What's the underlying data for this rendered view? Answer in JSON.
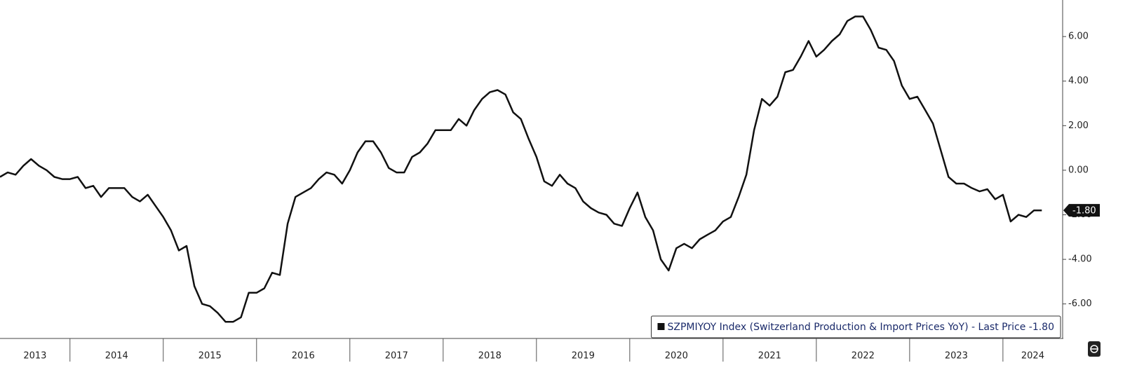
{
  "chart_data": {
    "type": "line",
    "x": [
      2013.25,
      2013.333,
      2013.417,
      2013.5,
      2013.583,
      2013.667,
      2013.75,
      2013.833,
      2013.917,
      2014,
      2014.083,
      2014.167,
      2014.25,
      2014.333,
      2014.417,
      2014.5,
      2014.583,
      2014.667,
      2014.75,
      2014.833,
      2014.917,
      2015,
      2015.083,
      2015.167,
      2015.25,
      2015.333,
      2015.417,
      2015.5,
      2015.583,
      2015.667,
      2015.75,
      2015.833,
      2015.917,
      2016,
      2016.083,
      2016.167,
      2016.25,
      2016.333,
      2016.417,
      2016.5,
      2016.583,
      2016.667,
      2016.75,
      2016.833,
      2016.917,
      2017,
      2017.083,
      2017.167,
      2017.25,
      2017.333,
      2017.417,
      2017.5,
      2017.583,
      2017.667,
      2017.75,
      2017.833,
      2017.917,
      2018,
      2018.083,
      2018.167,
      2018.25,
      2018.333,
      2018.417,
      2018.5,
      2018.583,
      2018.667,
      2018.75,
      2018.833,
      2018.917,
      2019,
      2019.083,
      2019.167,
      2019.25,
      2019.333,
      2019.417,
      2019.5,
      2019.583,
      2019.667,
      2019.75,
      2019.833,
      2019.917,
      2020,
      2020.083,
      2020.167,
      2020.25,
      2020.333,
      2020.417,
      2020.5,
      2020.583,
      2020.667,
      2020.75,
      2020.833,
      2020.917,
      2021,
      2021.083,
      2021.167,
      2021.25,
      2021.333,
      2021.417,
      2021.5,
      2021.583,
      2021.667,
      2021.75,
      2021.833,
      2021.917,
      2022,
      2022.083,
      2022.167,
      2022.25,
      2022.333,
      2022.417,
      2022.5,
      2022.583,
      2022.667,
      2022.75,
      2022.833,
      2022.917,
      2023,
      2023.083,
      2023.167,
      2023.25,
      2023.333,
      2023.417,
      2023.5,
      2023.583,
      2023.667,
      2023.75,
      2023.833,
      2023.917,
      2024,
      2024.083,
      2024.167,
      2024.25,
      2024.333,
      2024.417
    ],
    "series": [
      {
        "name": "SZPMIYOY Index (Switzerland Production & Import Prices YoY) - Last Price -1.80",
        "color": "#111111",
        "values": [
          -0.3,
          -0.1,
          -0.2,
          0.2,
          0.5,
          0.2,
          0.0,
          -0.3,
          -0.4,
          -0.4,
          -0.3,
          -0.8,
          -0.7,
          -1.2,
          -0.8,
          -0.8,
          -0.8,
          -1.2,
          -1.4,
          -1.1,
          -1.6,
          -2.1,
          -2.7,
          -3.6,
          -3.4,
          -5.2,
          -6.0,
          -6.1,
          -6.4,
          -6.8,
          -6.8,
          -6.6,
          -5.5,
          -5.5,
          -5.3,
          -4.6,
          -4.7,
          -2.4,
          -1.2,
          -1.0,
          -0.8,
          -0.4,
          -0.1,
          -0.2,
          -0.6,
          0.0,
          0.8,
          1.3,
          1.3,
          0.8,
          0.1,
          -0.1,
          -0.1,
          0.6,
          0.8,
          1.2,
          1.8,
          1.8,
          1.8,
          2.3,
          2.0,
          2.7,
          3.2,
          3.5,
          3.6,
          3.4,
          2.6,
          2.3,
          1.4,
          0.6,
          -0.5,
          -0.7,
          -0.2,
          -0.6,
          -0.8,
          -1.4,
          -1.7,
          -1.9,
          -2.0,
          -2.4,
          -2.5,
          -1.7,
          -1.0,
          -2.1,
          -2.7,
          -4.0,
          -4.5,
          -3.5,
          -3.3,
          -3.5,
          -3.1,
          -2.9,
          -2.7,
          -2.3,
          -2.1,
          -1.2,
          -0.2,
          1.8,
          3.2,
          2.9,
          3.3,
          4.4,
          4.5,
          5.1,
          5.8,
          5.1,
          5.4,
          5.8,
          6.1,
          6.7,
          6.9,
          6.9,
          6.3,
          5.5,
          5.4,
          4.9,
          3.8,
          3.2,
          3.3,
          2.7,
          2.1,
          0.9,
          -0.3,
          -0.6,
          -0.6,
          -0.8,
          -0.95,
          -0.85,
          -1.3,
          -1.1,
          -2.3,
          -2.0,
          -2.1,
          -1.8,
          -1.8
        ]
      }
    ],
    "last_value_label": "-1.80",
    "xlim": [
      2013.25,
      2024.64
    ],
    "ylim": [
      -7.55,
      7.64
    ],
    "xticks": [
      {
        "value": 2013,
        "label": "2013"
      },
      {
        "value": 2014,
        "label": "2014"
      },
      {
        "value": 2015,
        "label": "2015"
      },
      {
        "value": 2016,
        "label": "2016"
      },
      {
        "value": 2017,
        "label": "2017"
      },
      {
        "value": 2018,
        "label": "2018"
      },
      {
        "value": 2019,
        "label": "2019"
      },
      {
        "value": 2020,
        "label": "2020"
      },
      {
        "value": 2021,
        "label": "2021"
      },
      {
        "value": 2022,
        "label": "2022"
      },
      {
        "value": 2023,
        "label": "2023"
      },
      {
        "value": 2024,
        "label": "2024"
      }
    ],
    "yticks": [
      {
        "value": -6,
        "label": "-6.00"
      },
      {
        "value": -4,
        "label": "-4.00"
      },
      {
        "value": -2,
        "label": "-2.00"
      },
      {
        "value": 0,
        "label": "0.00"
      },
      {
        "value": 2,
        "label": "2.00"
      },
      {
        "value": 4,
        "label": "4.00"
      },
      {
        "value": 6,
        "label": "6.00"
      }
    ],
    "legend": "lower right"
  }
}
